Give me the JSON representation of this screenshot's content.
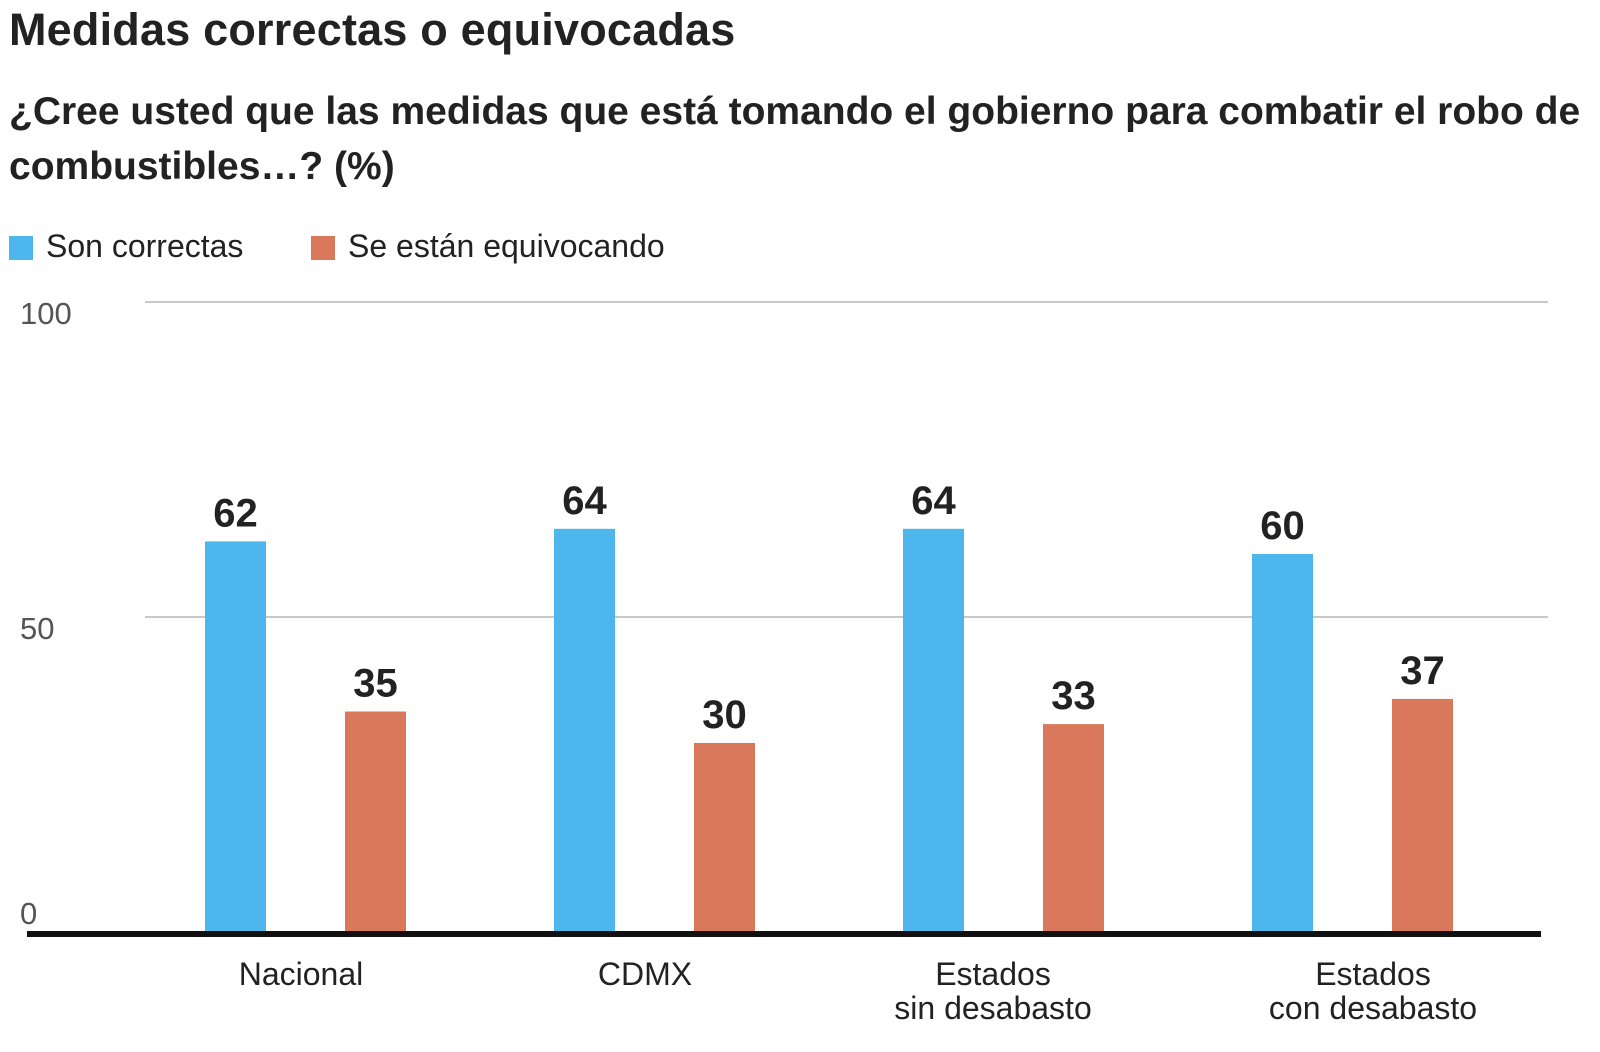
{
  "title": "Medidas correctas o equivocadas",
  "subtitle": "¿Cree usted que las medidas que está tomando el gobierno para combatir el robo de combustibles…? (%)",
  "legend": {
    "items": [
      {
        "label": "Son correctas",
        "color": "#4DB6EC"
      },
      {
        "label": "Se están equivocando",
        "color": "#D9785B"
      }
    ]
  },
  "chart_data": {
    "type": "bar",
    "title": "Medidas correctas o equivocadas",
    "subtitle": "¿Cree usted que las medidas que está tomando el gobierno para combatir el robo de combustibles…? (%)",
    "categories": [
      "Nacional",
      "CDMX",
      "Estados sin desabasto",
      "Estados con desabasto"
    ],
    "category_lines": [
      [
        "Nacional"
      ],
      [
        "CDMX"
      ],
      [
        "Estados",
        "sin desabasto"
      ],
      [
        "Estados",
        "con desabasto"
      ]
    ],
    "series": [
      {
        "name": "Son correctas",
        "color": "#4DB6EC",
        "values": [
          62,
          64,
          64,
          60
        ]
      },
      {
        "name": "Se están equivocando",
        "color": "#D9785B",
        "values": [
          35,
          30,
          33,
          37
        ]
      }
    ],
    "ylim": [
      0,
      100
    ],
    "yticks": [
      0,
      50,
      100
    ],
    "xlabel": "",
    "ylabel": "",
    "grid": true,
    "legend_position": "top-left",
    "data_labels": true
  }
}
